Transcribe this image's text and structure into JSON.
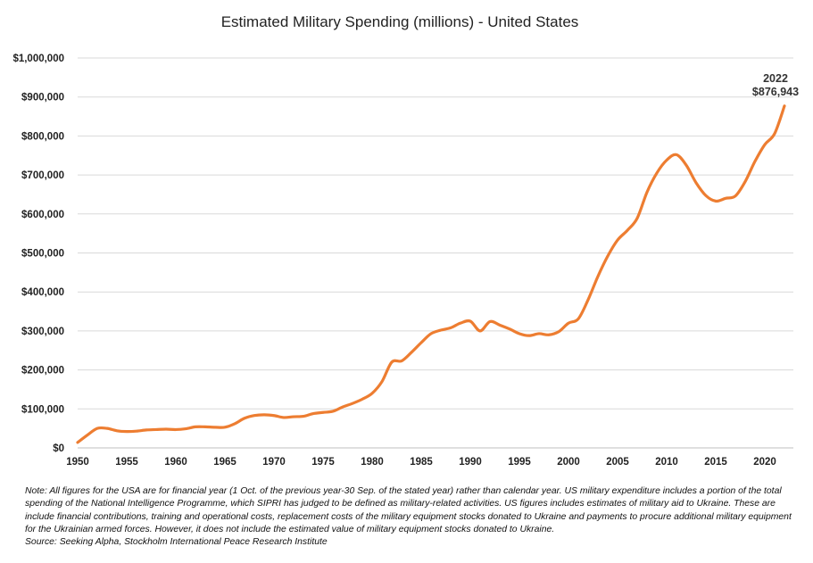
{
  "chart_data": {
    "type": "line",
    "title": "Estimated Military Spending (millions) - United States",
    "xlabel": "",
    "ylabel": "",
    "xlim": [
      1950,
      2022
    ],
    "ylim": [
      0,
      1000000
    ],
    "x_ticks": [
      "1950",
      "1955",
      "1960",
      "1965",
      "1970",
      "1975",
      "1980",
      "1985",
      "1990",
      "1995",
      "2000",
      "2005",
      "2010",
      "2015",
      "2020"
    ],
    "y_ticks": [
      "$0",
      "$100,000",
      "$200,000",
      "$300,000",
      "$400,000",
      "$500,000",
      "$600,000",
      "$700,000",
      "$800,000",
      "$900,000",
      "$1,000,000"
    ],
    "grid": "horizontal",
    "line_color": "#ED7D31",
    "series": [
      {
        "x": [
          1950,
          1951,
          1952,
          1953,
          1954,
          1955,
          1956,
          1957,
          1958,
          1959,
          1960,
          1961,
          1962,
          1963,
          1964,
          1965,
          1966,
          1967,
          1968,
          1969,
          1970,
          1971,
          1972,
          1973,
          1974,
          1975,
          1976,
          1977,
          1978,
          1979,
          1980,
          1981,
          1982,
          1983,
          1984,
          1985,
          1986,
          1987,
          1988,
          1989,
          1990,
          1991,
          1992,
          1993,
          1994,
          1995,
          1996,
          1997,
          1998,
          1999,
          2000,
          2001,
          2002,
          2003,
          2004,
          2005,
          2006,
          2007,
          2008,
          2009,
          2010,
          2011,
          2012,
          2013,
          2014,
          2015,
          2016,
          2017,
          2018,
          2019,
          2020,
          2021,
          2022
        ],
        "values": [
          14000,
          33000,
          50000,
          50000,
          44000,
          42000,
          43000,
          46000,
          47000,
          48000,
          47000,
          49000,
          54000,
          54000,
          53000,
          53000,
          62000,
          76000,
          83000,
          85000,
          83000,
          78000,
          80000,
          81000,
          88000,
          91000,
          94000,
          105000,
          114000,
          125000,
          140000,
          170000,
          220000,
          223000,
          245000,
          270000,
          293000,
          302000,
          308000,
          320000,
          325000,
          300000,
          324000,
          315000,
          305000,
          293000,
          288000,
          293000,
          290000,
          298000,
          320000,
          331000,
          380000,
          440000,
          492000,
          533000,
          558000,
          589000,
          656000,
          705000,
          738000,
          752000,
          725000,
          680000,
          647000,
          633000,
          640000,
          646000,
          683000,
          735000,
          778000,
          806000,
          876943
        ]
      }
    ],
    "annotation": {
      "year": "2022",
      "value": "$876,943"
    }
  },
  "note": "Note: All figures for the USA are for financial year (1 Oct. of the previous year-30 Sep. of the stated year) rather than calendar year. US military expenditure includes a portion of the total spending of the National Intelligence Programme, which SIPRI has judged to be defined as military-related activities. US figures includes estimates of military aid to Ukraine. These are include financial contributions, training and operational costs, replacement costs of the military equipment stocks donated to Ukraine and payments to procure additional military equipment for the Ukrainian armed forces. However, it does not include the estimated value of military equipment stocks donated to Ukraine.",
  "source": "Source: Seeking Alpha, Stockholm International Peace Research Institute"
}
